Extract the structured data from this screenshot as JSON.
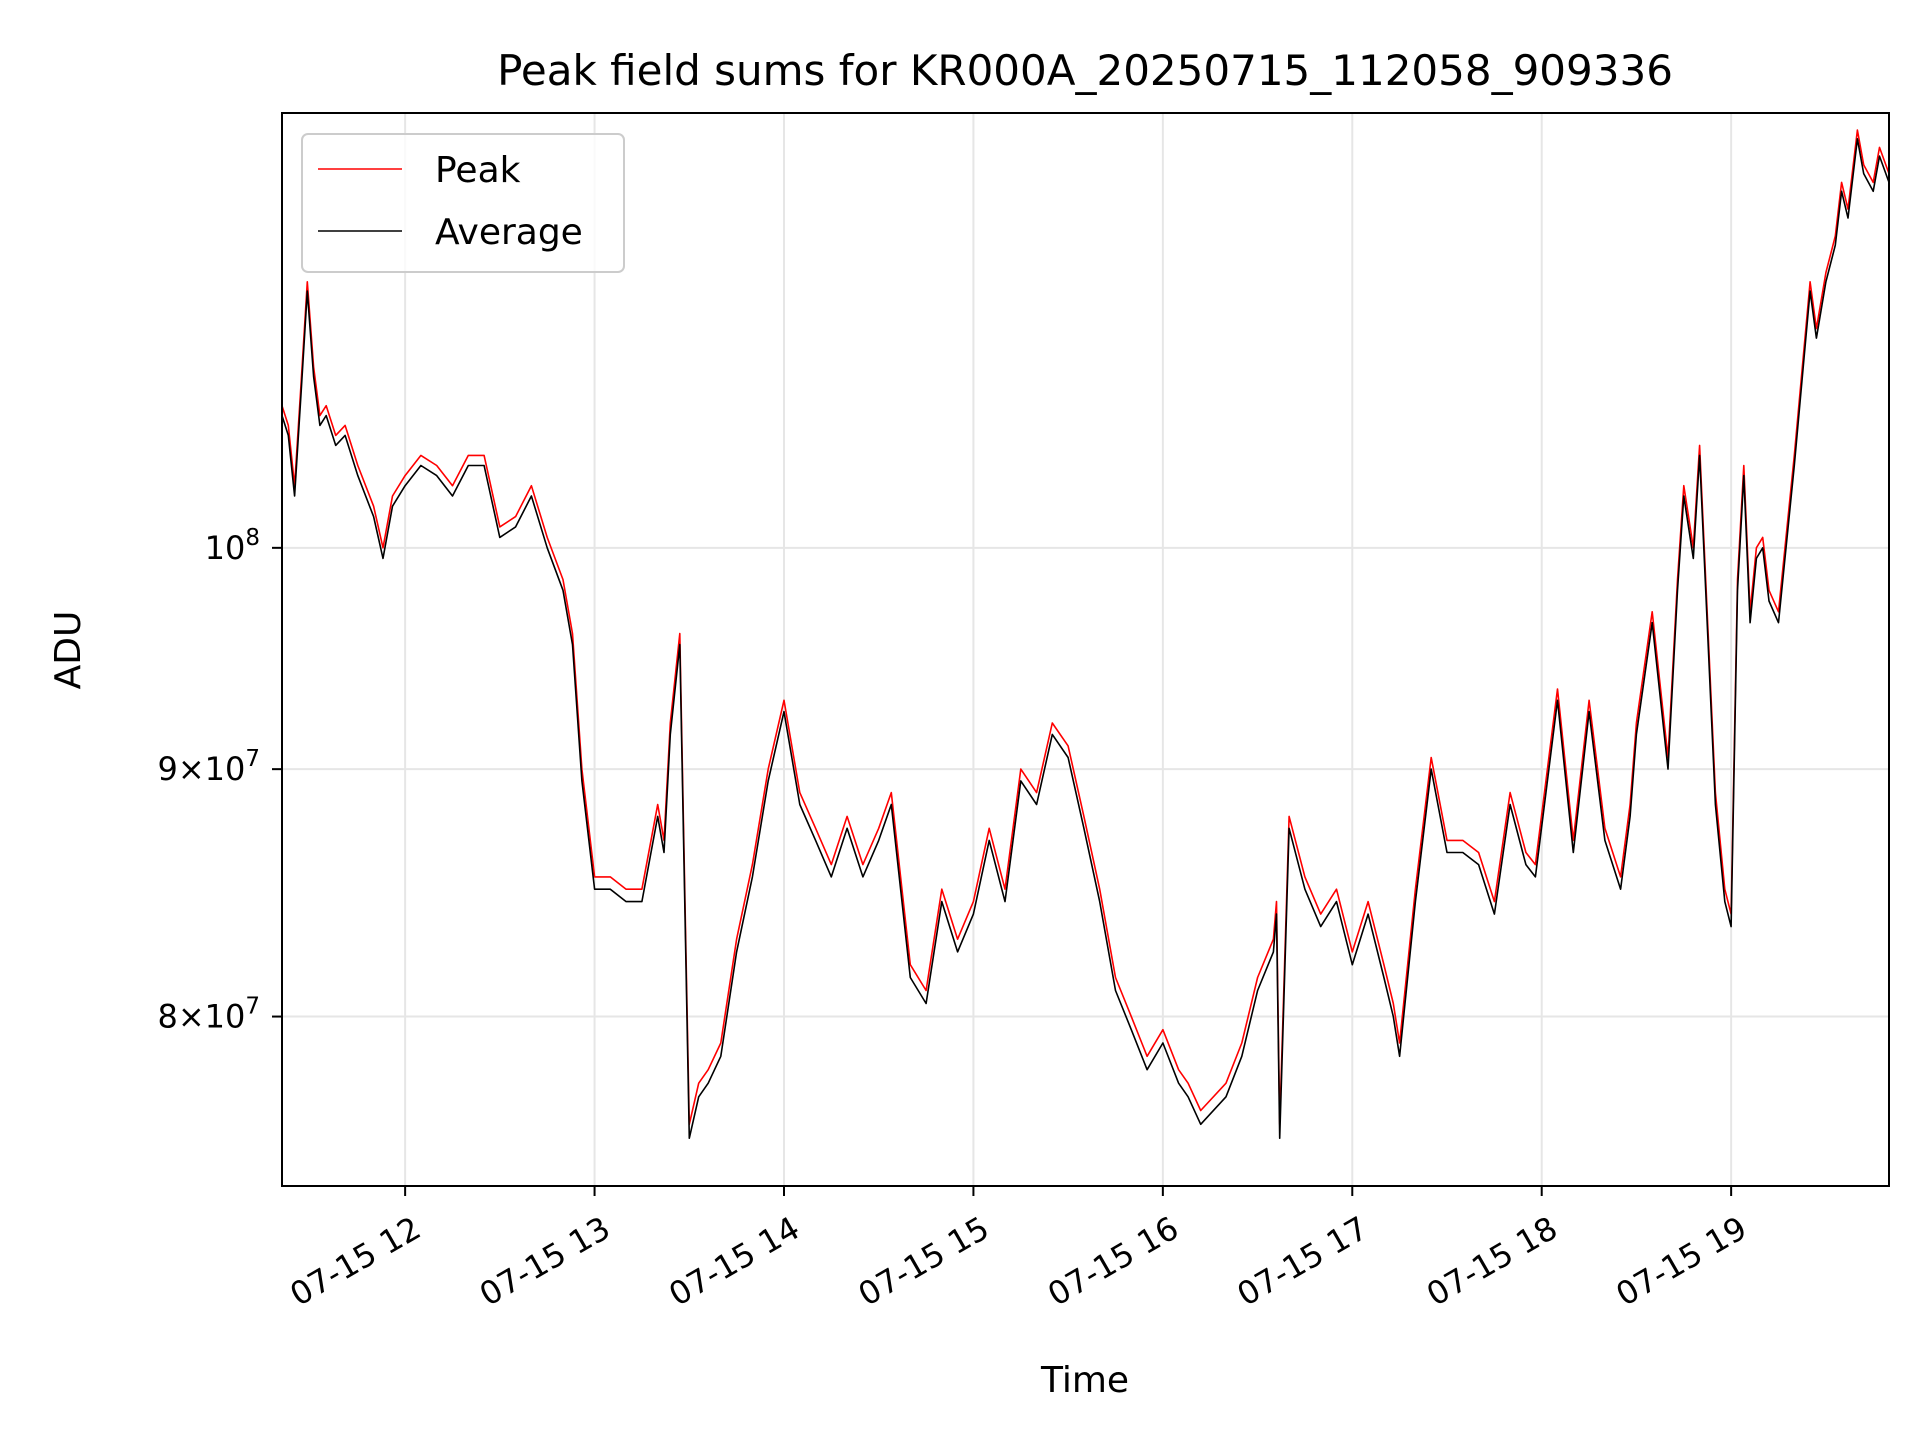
{
  "chart_data": {
    "type": "line",
    "title": "Peak field sums for KR000A_20250715_112058_909336",
    "xlabel": "Time",
    "ylabel": "ADU",
    "yscale": "log",
    "xlim": [
      "2025-07-15 11:21",
      "2025-07-15 19:50"
    ],
    "ylim": [
      73800000,
      123000000
    ],
    "grid": true,
    "legend": {
      "location": "upper-left",
      "entries": [
        "Peak",
        "Average"
      ]
    },
    "x_ticks": [
      {
        "value": "2025-07-15 12:00",
        "label": "07-15 12"
      },
      {
        "value": "2025-07-15 13:00",
        "label": "07-15 13"
      },
      {
        "value": "2025-07-15 14:00",
        "label": "07-15 14"
      },
      {
        "value": "2025-07-15 15:00",
        "label": "07-15 15"
      },
      {
        "value": "2025-07-15 16:00",
        "label": "07-15 16"
      },
      {
        "value": "2025-07-15 17:00",
        "label": "07-15 17"
      },
      {
        "value": "2025-07-15 18:00",
        "label": "07-15 18"
      },
      {
        "value": "2025-07-15 19:00",
        "label": "07-15 19"
      }
    ],
    "y_ticks": [
      {
        "value": 80000000,
        "mantissa": "8",
        "exponent": "7"
      },
      {
        "value": 90000000,
        "mantissa": "9",
        "exponent": "7"
      },
      {
        "value": 100000000,
        "mantissa": "",
        "exponent": "8"
      }
    ],
    "x": [
      "2025-07-15 11:21",
      "2025-07-15 11:23",
      "2025-07-15 11:25",
      "2025-07-15 11:27",
      "2025-07-15 11:29",
      "2025-07-15 11:31",
      "2025-07-15 11:33",
      "2025-07-15 11:35",
      "2025-07-15 11:38",
      "2025-07-15 11:41",
      "2025-07-15 11:45",
      "2025-07-15 11:50",
      "2025-07-15 11:53",
      "2025-07-15 11:56",
      "2025-07-15 12:00",
      "2025-07-15 12:05",
      "2025-07-15 12:10",
      "2025-07-15 12:15",
      "2025-07-15 12:20",
      "2025-07-15 12:25",
      "2025-07-15 12:30",
      "2025-07-15 12:35",
      "2025-07-15 12:40",
      "2025-07-15 12:45",
      "2025-07-15 12:50",
      "2025-07-15 12:53",
      "2025-07-15 12:56",
      "2025-07-15 13:00",
      "2025-07-15 13:05",
      "2025-07-15 13:10",
      "2025-07-15 13:15",
      "2025-07-15 13:20",
      "2025-07-15 13:22",
      "2025-07-15 13:24",
      "2025-07-15 13:27",
      "2025-07-15 13:30",
      "2025-07-15 13:33",
      "2025-07-15 13:36",
      "2025-07-15 13:40",
      "2025-07-15 13:45",
      "2025-07-15 13:50",
      "2025-07-15 13:55",
      "2025-07-15 14:00",
      "2025-07-15 14:05",
      "2025-07-15 14:10",
      "2025-07-15 14:15",
      "2025-07-15 14:20",
      "2025-07-15 14:25",
      "2025-07-15 14:30",
      "2025-07-15 14:34",
      "2025-07-15 14:40",
      "2025-07-15 14:45",
      "2025-07-15 14:50",
      "2025-07-15 14:55",
      "2025-07-15 15:00",
      "2025-07-15 15:05",
      "2025-07-15 15:10",
      "2025-07-15 15:15",
      "2025-07-15 15:20",
      "2025-07-15 15:25",
      "2025-07-15 15:30",
      "2025-07-15 15:35",
      "2025-07-15 15:40",
      "2025-07-15 15:45",
      "2025-07-15 15:50",
      "2025-07-15 15:55",
      "2025-07-15 16:00",
      "2025-07-15 16:05",
      "2025-07-15 16:08",
      "2025-07-15 16:12",
      "2025-07-15 16:20",
      "2025-07-15 16:25",
      "2025-07-15 16:30",
      "2025-07-15 16:35",
      "2025-07-15 16:36",
      "2025-07-15 16:37",
      "2025-07-15 16:40",
      "2025-07-15 16:45",
      "2025-07-15 16:50",
      "2025-07-15 16:55",
      "2025-07-15 17:00",
      "2025-07-15 17:05",
      "2025-07-15 17:10",
      "2025-07-15 17:13",
      "2025-07-15 17:15",
      "2025-07-15 17:20",
      "2025-07-15 17:25",
      "2025-07-15 17:30",
      "2025-07-15 17:35",
      "2025-07-15 17:40",
      "2025-07-15 17:45",
      "2025-07-15 17:50",
      "2025-07-15 17:55",
      "2025-07-15 17:58",
      "2025-07-15 18:05",
      "2025-07-15 18:10",
      "2025-07-15 18:15",
      "2025-07-15 18:20",
      "2025-07-15 18:25",
      "2025-07-15 18:28",
      "2025-07-15 18:30",
      "2025-07-15 18:35",
      "2025-07-15 18:40",
      "2025-07-15 18:43",
      "2025-07-15 18:45",
      "2025-07-15 18:48",
      "2025-07-15 18:50",
      "2025-07-15 18:55",
      "2025-07-15 18:58",
      "2025-07-15 19:00",
      "2025-07-15 19:02",
      "2025-07-15 19:04",
      "2025-07-15 19:06",
      "2025-07-15 19:08",
      "2025-07-15 19:10",
      "2025-07-15 19:12",
      "2025-07-15 19:15",
      "2025-07-15 19:20",
      "2025-07-15 19:25",
      "2025-07-15 19:27",
      "2025-07-15 19:30",
      "2025-07-15 19:33",
      "2025-07-15 19:35",
      "2025-07-15 19:37",
      "2025-07-15 19:40",
      "2025-07-15 19:42",
      "2025-07-15 19:45",
      "2025-07-15 19:47",
      "2025-07-15 19:50"
    ],
    "series": [
      {
        "name": "Peak",
        "color": "#ff0000",
        "values": [
          107000000,
          106000000,
          103000000,
          108000000,
          113500000,
          109000000,
          106500000,
          107000000,
          105500000,
          106000000,
          104000000,
          102000000,
          100000000,
          102500000,
          103500000,
          104500000,
          104000000,
          103000000,
          104500000,
          104500000,
          101000000,
          101500000,
          103000000,
          100500000,
          98500000,
          96000000,
          90000000,
          85500000,
          85500000,
          85000000,
          85000000,
          88500000,
          87000000,
          92000000,
          96000000,
          76000000,
          77500000,
          78000000,
          79000000,
          83000000,
          86000000,
          90000000,
          93000000,
          89000000,
          87500000,
          86000000,
          88000000,
          86000000,
          87500000,
          89000000,
          82000000,
          81000000,
          85000000,
          83000000,
          84500000,
          87500000,
          85000000,
          90000000,
          89000000,
          92000000,
          91000000,
          88000000,
          85000000,
          81500000,
          80000000,
          78500000,
          79500000,
          78000000,
          77500000,
          76500000,
          77500000,
          79000000,
          81500000,
          83000000,
          84500000,
          76000000,
          88000000,
          85500000,
          84000000,
          85000000,
          82500000,
          84500000,
          82000000,
          80500000,
          79000000,
          85000000,
          90500000,
          87000000,
          87000000,
          86500000,
          84500000,
          89000000,
          86500000,
          86000000,
          93500000,
          87000000,
          93000000,
          87500000,
          85500000,
          88500000,
          92000000,
          97000000,
          90500000,
          98500000,
          103000000,
          100000000,
          105000000,
          89000000,
          85000000,
          84000000,
          98500000,
          104000000,
          97000000,
          100000000,
          100500000,
          98000000,
          97000000,
          104500000,
          113500000,
          111000000,
          114000000,
          116000000,
          119000000,
          117500000,
          122000000,
          120000000,
          119000000,
          121000000,
          119500000
        ]
      },
      {
        "name": "Average",
        "color": "#000000",
        "values": [
          106500000,
          105500000,
          102500000,
          107500000,
          113000000,
          108500000,
          106000000,
          106500000,
          105000000,
          105500000,
          103500000,
          101500000,
          99500000,
          102000000,
          103000000,
          104000000,
          103500000,
          102500000,
          104000000,
          104000000,
          100500000,
          101000000,
          102500000,
          100000000,
          98000000,
          95500000,
          89500000,
          85000000,
          85000000,
          84500000,
          84500000,
          88000000,
          86500000,
          91500000,
          95500000,
          75500000,
          77000000,
          77500000,
          78500000,
          82500000,
          85500000,
          89500000,
          92500000,
          88500000,
          87000000,
          85500000,
          87500000,
          85500000,
          87000000,
          88500000,
          81500000,
          80500000,
          84500000,
          82500000,
          84000000,
          87000000,
          84500000,
          89500000,
          88500000,
          91500000,
          90500000,
          87500000,
          84500000,
          81000000,
          79500000,
          78000000,
          79000000,
          77500000,
          77000000,
          76000000,
          77000000,
          78500000,
          81000000,
          82500000,
          84000000,
          75500000,
          87500000,
          85000000,
          83500000,
          84500000,
          82000000,
          84000000,
          81500000,
          80000000,
          78500000,
          84500000,
          90000000,
          86500000,
          86500000,
          86000000,
          84000000,
          88500000,
          86000000,
          85500000,
          93000000,
          86500000,
          92500000,
          87000000,
          85000000,
          88000000,
          91500000,
          96500000,
          90000000,
          98000000,
          102500000,
          99500000,
          104500000,
          88500000,
          84500000,
          83500000,
          98000000,
          103500000,
          96500000,
          99500000,
          100000000,
          97500000,
          96500000,
          104000000,
          113000000,
          110500000,
          113500000,
          115500000,
          118500000,
          117000000,
          121500000,
          119500000,
          118500000,
          120500000,
          119000000
        ]
      }
    ]
  }
}
